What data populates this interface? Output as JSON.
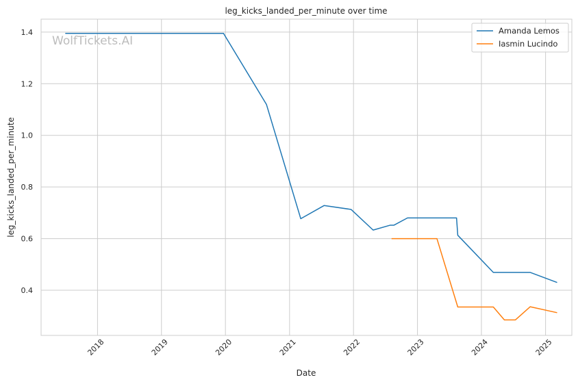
{
  "chart_data": {
    "type": "line",
    "title": "leg_kicks_landed_per_minute over time",
    "xlabel": "Date",
    "ylabel": "leg_kicks_landed_per_minute",
    "watermark": "WolfTickets.AI",
    "xlim": [
      "2017-02-13",
      "2025-05-31"
    ],
    "ylim": [
      0.225,
      1.45
    ],
    "x_ticks": [
      {
        "date": "2018-01-01",
        "label": "2018"
      },
      {
        "date": "2019-01-01",
        "label": "2019"
      },
      {
        "date": "2020-01-01",
        "label": "2020"
      },
      {
        "date": "2021-01-01",
        "label": "2021"
      },
      {
        "date": "2022-01-01",
        "label": "2022"
      },
      {
        "date": "2023-01-01",
        "label": "2023"
      },
      {
        "date": "2024-01-01",
        "label": "2024"
      },
      {
        "date": "2025-01-01",
        "label": "2025"
      }
    ],
    "y_ticks": [
      {
        "value": 0.4,
        "label": "0.4"
      },
      {
        "value": 0.6,
        "label": "0.6"
      },
      {
        "value": 0.8,
        "label": "0.8"
      },
      {
        "value": 1.0,
        "label": "1.0"
      },
      {
        "value": 1.2,
        "label": "1.2"
      },
      {
        "value": 1.4,
        "label": "1.4"
      }
    ],
    "grid": true,
    "legend_position": "top-right",
    "series": [
      {
        "name": "Amanda Lemos",
        "color": "#1f77b4",
        "points": [
          {
            "x": "2017-07-01",
            "y": 1.395
          },
          {
            "x": "2019-12-21",
            "y": 1.395
          },
          {
            "x": "2020-08-22",
            "y": 1.12
          },
          {
            "x": "2021-03-06",
            "y": 0.677
          },
          {
            "x": "2021-07-17",
            "y": 0.728
          },
          {
            "x": "2021-12-18",
            "y": 0.713
          },
          {
            "x": "2022-04-23",
            "y": 0.633
          },
          {
            "x": "2022-07-30",
            "y": 0.652
          },
          {
            "x": "2022-08-20",
            "y": 0.652
          },
          {
            "x": "2022-11-05",
            "y": 0.68
          },
          {
            "x": "2023-08-12",
            "y": 0.68
          },
          {
            "x": "2023-08-19",
            "y": 0.613
          },
          {
            "x": "2024-03-09",
            "y": 0.469
          },
          {
            "x": "2024-10-05",
            "y": 0.469
          },
          {
            "x": "2025-03-08",
            "y": 0.43
          }
        ]
      },
      {
        "name": "Iasmin Lucindo",
        "color": "#ff7f0e",
        "points": [
          {
            "x": "2022-08-06",
            "y": 0.6
          },
          {
            "x": "2023-04-22",
            "y": 0.6
          },
          {
            "x": "2023-08-19",
            "y": 0.335
          },
          {
            "x": "2024-03-09",
            "y": 0.335
          },
          {
            "x": "2024-05-11",
            "y": 0.285
          },
          {
            "x": "2024-07-13",
            "y": 0.285
          },
          {
            "x": "2024-10-05",
            "y": 0.336
          },
          {
            "x": "2025-03-08",
            "y": 0.313
          }
        ]
      }
    ]
  }
}
